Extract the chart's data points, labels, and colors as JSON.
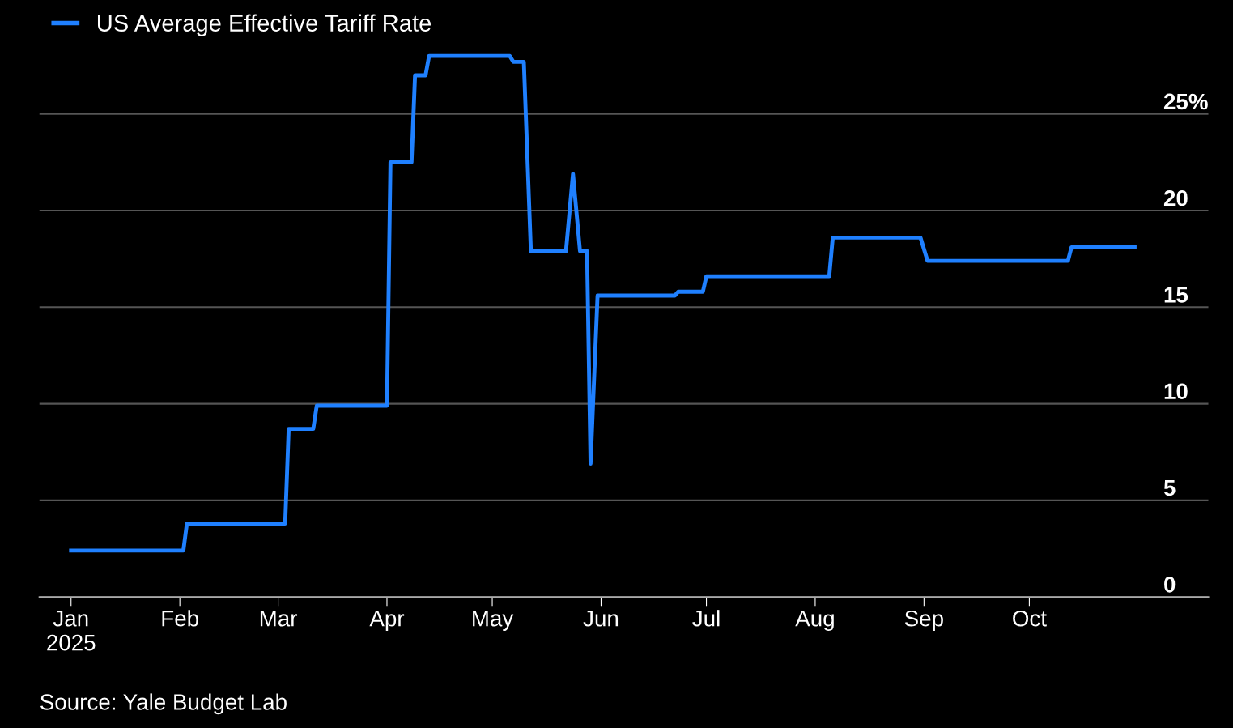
{
  "chart_data": {
    "type": "line",
    "legend": "top left",
    "grid": "y",
    "marker": "none",
    "line_style": "solid",
    "x": [
      "2025-01-01",
      "2025-02-02",
      "2025-02-03",
      "2025-03-03",
      "2025-03-04",
      "2025-03-11",
      "2025-03-12",
      "2025-04-01",
      "2025-04-02",
      "2025-04-08",
      "2025-04-09",
      "2025-04-12",
      "2025-04-13",
      "2025-05-06",
      "2025-05-07",
      "2025-05-10",
      "2025-05-12",
      "2025-05-22",
      "2025-05-24",
      "2025-05-26",
      "2025-05-28",
      "2025-05-29",
      "2025-05-31",
      "2025-06-22",
      "2025-06-23",
      "2025-06-30",
      "2025-07-01",
      "2025-08-05",
      "2025-08-06",
      "2025-08-31",
      "2025-09-02",
      "2025-10-12",
      "2025-10-13",
      "2025-10-31"
    ],
    "series": [
      {
        "name": "US Average Effective Tariff Rate",
        "color": "#1f80ff",
        "values": [
          2.4,
          2.4,
          3.8,
          3.8,
          8.7,
          8.7,
          9.9,
          9.9,
          22.5,
          22.5,
          27.0,
          27.0,
          28.0,
          28.0,
          27.7,
          27.7,
          17.9,
          17.9,
          21.9,
          17.9,
          17.9,
          6.9,
          15.6,
          15.6,
          15.8,
          15.8,
          16.6,
          16.6,
          18.6,
          18.6,
          17.4,
          17.4,
          18.1,
          18.1
        ]
      }
    ],
    "xlim": [
      "2024-12-23",
      "2025-11-21"
    ],
    "xticks": [
      {
        "value": "2025-01-01",
        "label": "Jan\n2025"
      },
      {
        "value": "2025-02-01",
        "label": "Feb"
      },
      {
        "value": "2025-03-01",
        "label": "Mar"
      },
      {
        "value": "2025-04-01",
        "label": "Apr"
      },
      {
        "value": "2025-05-01",
        "label": "May"
      },
      {
        "value": "2025-06-01",
        "label": "Jun"
      },
      {
        "value": "2025-07-01",
        "label": "Jul"
      },
      {
        "value": "2025-08-01",
        "label": "Aug"
      },
      {
        "value": "2025-09-01",
        "label": "Sep"
      },
      {
        "value": "2025-10-01",
        "label": "Oct"
      }
    ],
    "ylim": [
      0,
      30.9
    ],
    "yticks": [
      0,
      5,
      10,
      15,
      20,
      {
        "value": 25,
        "label": "25%"
      }
    ],
    "annotations": [
      "Source: Yale Budget Lab"
    ]
  }
}
